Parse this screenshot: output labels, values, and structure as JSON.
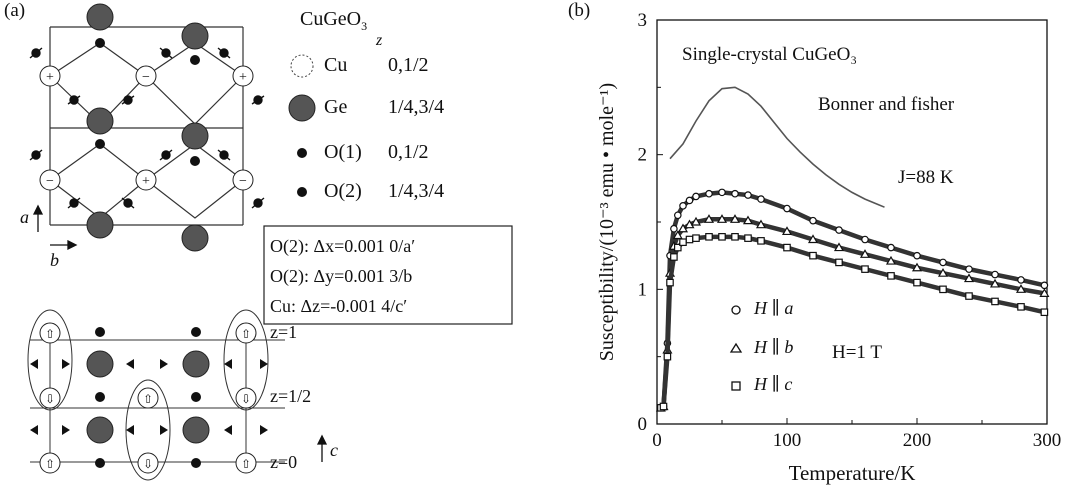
{
  "panel_a": {
    "label": "(a)",
    "compound": "CuGeO",
    "compound_sub": "3",
    "z_header": "z",
    "legend": [
      {
        "atom": "Cu",
        "z": "0,1/2"
      },
      {
        "atom": "Ge",
        "z": "1/4,3/4"
      },
      {
        "atom": "O(1)",
        "z": "0,1/2"
      },
      {
        "atom": "O(2)",
        "z": "1/4,3/4"
      }
    ],
    "axis_a": "a",
    "axis_b": "b",
    "axis_c": "c",
    "box_lines": [
      "O(2): Δx=0.001 0/a′",
      "O(2): Δy=0.001 3/b",
      "Cu: Δz=-0.001 4/c′"
    ],
    "z_levels": [
      "z=1",
      "z=1/2",
      "z=0"
    ]
  },
  "panel_b": {
    "label": "(b)",
    "title": "Single-crystal CuGeO₃",
    "model_label": "Bonner and fisher",
    "j_label": "J=88 K",
    "field_label": "H=1 T",
    "legend": [
      "H ∥ a",
      "H ∥ b",
      "H ∥ c"
    ]
  },
  "chart_data": {
    "type": "scatter",
    "xlabel": "Temperature/K",
    "ylabel": "Susceptibility/(10⁻³ emu • mole⁻¹)",
    "xlim": [
      0,
      300
    ],
    "ylim": [
      0,
      3
    ],
    "xticks": [
      "0",
      "100",
      "200",
      "300"
    ],
    "yticks": [
      "0",
      "1",
      "2",
      "3"
    ],
    "series": [
      {
        "name": "H ∥ a",
        "marker": "circle",
        "x": [
          3,
          5,
          8,
          10,
          13,
          16,
          20,
          25,
          30,
          40,
          50,
          60,
          70,
          80,
          100,
          120,
          140,
          160,
          180,
          200,
          220,
          240,
          260,
          280,
          298
        ],
        "y": [
          0.12,
          0.13,
          0.6,
          1.25,
          1.45,
          1.55,
          1.62,
          1.66,
          1.69,
          1.71,
          1.72,
          1.71,
          1.7,
          1.67,
          1.6,
          1.51,
          1.44,
          1.37,
          1.31,
          1.25,
          1.2,
          1.15,
          1.11,
          1.07,
          1.03
        ]
      },
      {
        "name": "H ∥ b",
        "marker": "triangle",
        "x": [
          3,
          5,
          8,
          10,
          13,
          16,
          20,
          25,
          30,
          40,
          50,
          60,
          70,
          80,
          100,
          120,
          140,
          160,
          180,
          200,
          220,
          240,
          260,
          280,
          298
        ],
        "y": [
          0.12,
          0.13,
          0.55,
          1.12,
          1.32,
          1.4,
          1.45,
          1.48,
          1.5,
          1.52,
          1.52,
          1.52,
          1.51,
          1.48,
          1.43,
          1.37,
          1.31,
          1.26,
          1.21,
          1.16,
          1.12,
          1.08,
          1.04,
          1.0,
          0.97
        ]
      },
      {
        "name": "H ∥ c",
        "marker": "square",
        "x": [
          3,
          5,
          8,
          10,
          13,
          16,
          20,
          25,
          30,
          40,
          50,
          60,
          70,
          80,
          100,
          120,
          140,
          160,
          180,
          200,
          220,
          240,
          260,
          280,
          298
        ],
        "y": [
          0.12,
          0.13,
          0.5,
          1.05,
          1.24,
          1.31,
          1.35,
          1.37,
          1.38,
          1.39,
          1.39,
          1.39,
          1.38,
          1.36,
          1.31,
          1.25,
          1.2,
          1.15,
          1.1,
          1.05,
          1.0,
          0.95,
          0.91,
          0.87,
          0.83
        ]
      },
      {
        "name": "Bonner and fisher",
        "marker": "line",
        "x": [
          10,
          20,
          30,
          40,
          50,
          60,
          70,
          80,
          90,
          100,
          110,
          120,
          130,
          140,
          150,
          160,
          170,
          175
        ],
        "y": [
          1.97,
          2.08,
          2.25,
          2.4,
          2.49,
          2.5,
          2.45,
          2.36,
          2.24,
          2.12,
          2.02,
          1.93,
          1.85,
          1.78,
          1.72,
          1.67,
          1.63,
          1.61
        ]
      }
    ]
  }
}
